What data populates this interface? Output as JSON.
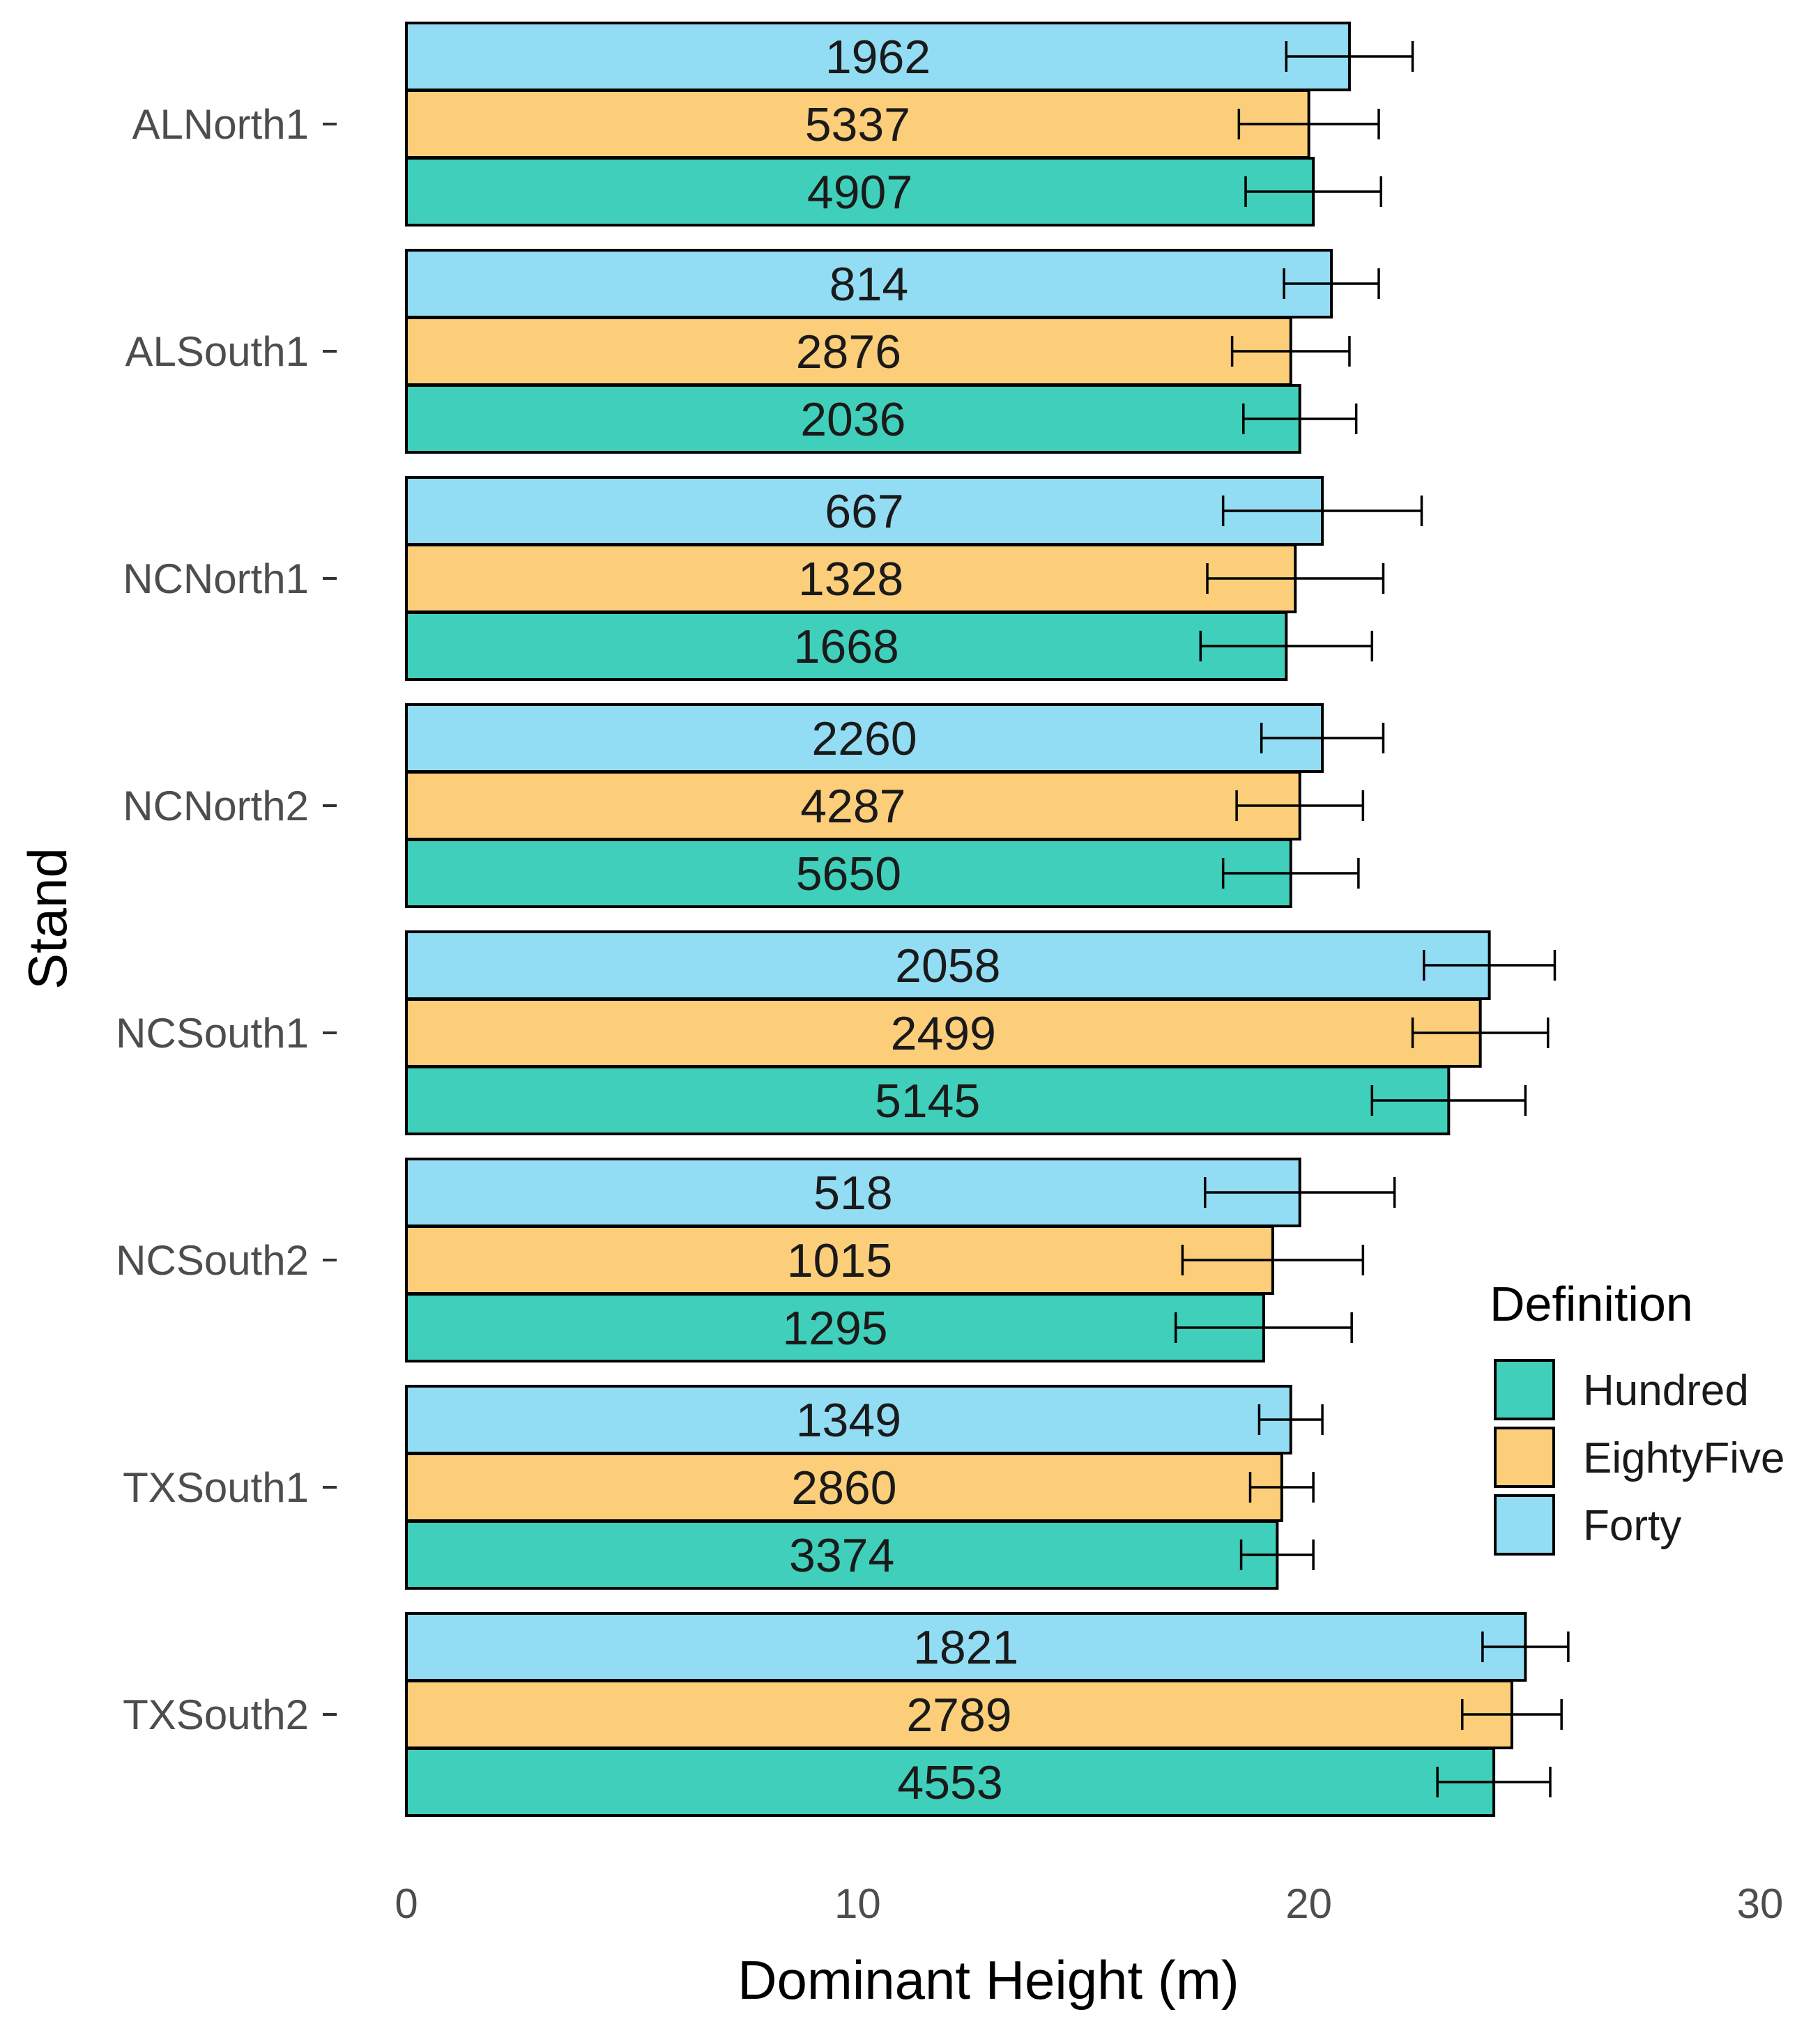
{
  "chart_data": {
    "type": "bar",
    "orientation": "horizontal",
    "title": "",
    "xlabel": "Dominant Height (m)",
    "ylabel": "Stand",
    "xlim": [
      0,
      30
    ],
    "xticks": [
      0,
      10,
      20,
      30
    ],
    "categories": [
      "ALNorth1",
      "ALSouth1",
      "NCNorth1",
      "NCNorth2",
      "NCSouth1",
      "NCSouth2",
      "TXSouth1",
      "TXSouth2"
    ],
    "series": [
      {
        "name": "Hundred",
        "color": "#40CFBA",
        "values": [
          20.1,
          19.8,
          19.5,
          19.6,
          23.1,
          19.0,
          19.3,
          24.1
        ],
        "error": [
          1.5,
          1.25,
          1.9,
          1.5,
          1.7,
          1.95,
          0.8,
          1.25
        ],
        "labels": [
          "4907",
          "2036",
          "1668",
          "5650",
          "5145",
          "1295",
          "3374",
          "4553"
        ]
      },
      {
        "name": "EightyFive",
        "color": "#FCCE7A",
        "values": [
          20.0,
          19.6,
          19.7,
          19.8,
          23.8,
          19.2,
          19.4,
          24.5
        ],
        "error": [
          1.55,
          1.3,
          1.95,
          1.4,
          1.5,
          2.0,
          0.7,
          1.1
        ],
        "labels": [
          "5337",
          "2876",
          "1328",
          "4287",
          "2499",
          "1015",
          "2860",
          "2789"
        ]
      },
      {
        "name": "Forty",
        "color": "#93DDF4",
        "values": [
          20.9,
          20.5,
          20.3,
          20.3,
          24.0,
          19.8,
          19.6,
          24.8
        ],
        "error": [
          1.4,
          1.05,
          2.2,
          1.35,
          1.45,
          2.1,
          0.7,
          0.95
        ],
        "labels": [
          "1962",
          "814",
          "667",
          "2260",
          "2058",
          "518",
          "1349",
          "1821"
        ]
      }
    ],
    "legend": {
      "title": "Definition",
      "position": "right",
      "items": [
        "Hundred",
        "EightyFive",
        "Forty"
      ]
    },
    "grid": false
  }
}
